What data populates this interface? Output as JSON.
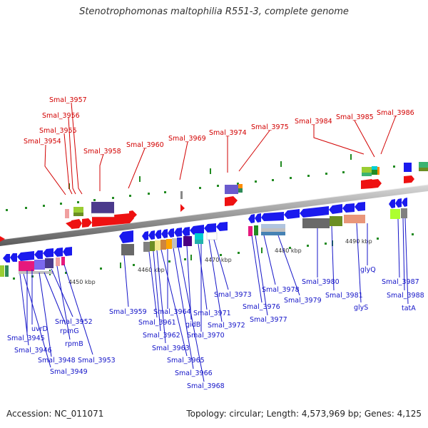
{
  "header": {
    "title": "Stenotrophomonas maltophilia R551-3, complete genome"
  },
  "footer": {
    "accession": "Accession: NC_011071",
    "summary": "Topology: circular; Length: 4,573,969 bp; Genes: 4,125"
  },
  "scale_ticks": [
    "4450 kbp",
    "4460 kbp",
    "4470 kbp",
    "4480 kbp",
    "4490 kbp"
  ],
  "top_labels": [
    "Smal_3957",
    "Smal_3956",
    "Smal_3955",
    "Smal_3954",
    "Smal_3958",
    "Smal_3960",
    "Smal_3969",
    "Smal_3974",
    "Smal_3975",
    "Smal_3984",
    "Smal_3985",
    "Smal_3986"
  ],
  "bottom_labels": [
    "uvrD",
    "Smal_3945",
    "Smal_3946",
    "rpmG",
    "Smal_3952",
    "rpmB",
    "Smal_3948",
    "Smal_3953",
    "Smal_3949",
    "Smal_3959",
    "Smal_3964",
    "Smal_3961",
    "Smal_3962",
    "Smal_3963",
    "gidB",
    "Smal_3971",
    "Smal_3970",
    "Smal_3965",
    "Smal_3966",
    "Smal_3968",
    "Smal_3972",
    "Smal_3973",
    "Smal_3976",
    "Smal_3977",
    "Smal_3978",
    "Smal_3979",
    "Smal_3980",
    "Smal_3981",
    "glyQ",
    "glyS",
    "Smal_3987",
    "Smal_3988",
    "tatA"
  ],
  "colors": {
    "forward_gene": "#ee1111",
    "reverse_gene": "#1a1aee",
    "backbone": "#999999"
  }
}
